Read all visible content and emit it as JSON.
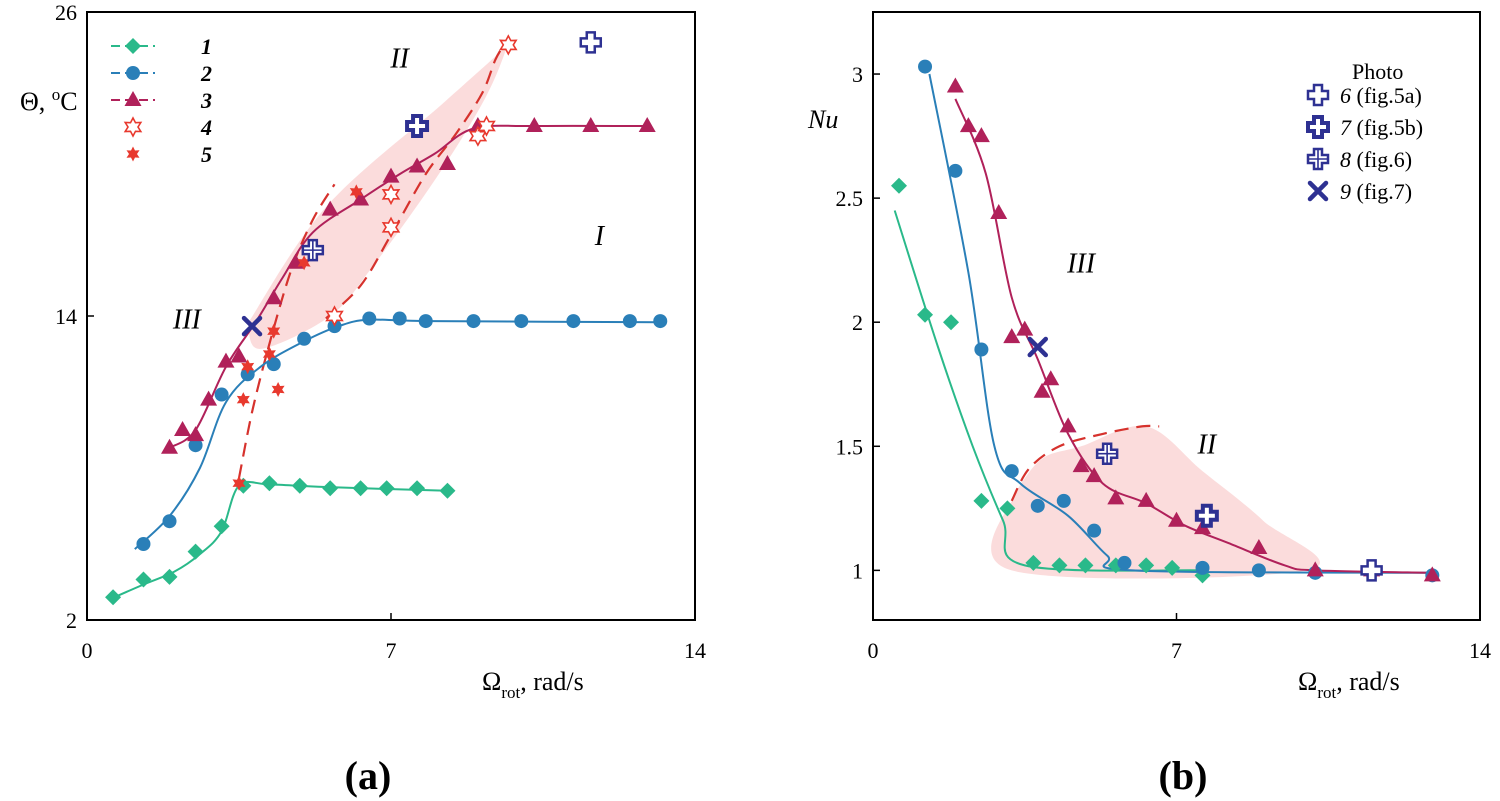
{
  "colors": {
    "s1": "#2ab98a",
    "s2": "#2a7fb8",
    "s3": "#b0215a",
    "s45": "#e8392e",
    "photo": "#2e3192",
    "shade": "#f9d0d0",
    "dash": "#d6322d"
  },
  "chart_data": [
    {
      "type": "scatter",
      "panel_label": "(a)",
      "xlabel": "Ω",
      "xlabel_sub": "rot",
      "xlabel_unit": ", rad/s",
      "ylabel": "Θ, ",
      "ylabel_sup": "o",
      "ylabel_unit": "C",
      "xlim": [
        0,
        14
      ],
      "ylim": [
        2,
        26
      ],
      "xticks": [
        "0",
        "7",
        "14"
      ],
      "xtick_values": [
        0,
        7,
        14
      ],
      "yticks": [
        "2",
        "14",
        "26"
      ],
      "ytick_values": [
        2,
        14,
        26
      ],
      "legend": [
        {
          "label": "1",
          "marker": "diamond",
          "color": "s1",
          "line": true
        },
        {
          "label": "2",
          "marker": "circle",
          "color": "s2",
          "line": true
        },
        {
          "label": "3",
          "marker": "triangle",
          "color": "s3",
          "line": true
        },
        {
          "label": "4",
          "marker": "star-open",
          "color": "s45",
          "line": false
        },
        {
          "label": "5",
          "marker": "star",
          "color": "s45",
          "line": false
        }
      ],
      "regions": [
        {
          "label": "I",
          "x": 11.8,
          "y": 16.8
        },
        {
          "label": "II",
          "x": 7.2,
          "y": 23.8
        },
        {
          "label": "III",
          "x": 2.3,
          "y": 13.5
        }
      ],
      "shaded_region": [
        [
          3.7,
          13.7
        ],
        [
          5.5,
          18.3
        ],
        [
          8.2,
          22.4
        ],
        [
          9.5,
          24.4
        ],
        [
          9.7,
          24.8
        ],
        [
          9.2,
          22.7
        ],
        [
          8.1,
          19.6
        ],
        [
          6.6,
          16.0
        ],
        [
          5.6,
          14.0
        ],
        [
          4.0,
          12.7
        ]
      ],
      "dashed_boundaries": [
        [
          [
            3.5,
            7.6
          ],
          [
            3.8,
            10.2
          ],
          [
            4.2,
            12.9
          ],
          [
            4.7,
            15.8
          ],
          [
            5.2,
            17.8
          ],
          [
            5.7,
            19.2
          ]
        ],
        [
          [
            5.5,
            13.9
          ],
          [
            6.3,
            15.2
          ],
          [
            7.0,
            17.2
          ],
          [
            7.8,
            19.6
          ],
          [
            8.5,
            21.2
          ],
          [
            9.1,
            22.8
          ],
          [
            9.4,
            24.1
          ],
          [
            9.6,
            24.7
          ]
        ]
      ],
      "series": [
        {
          "name": "1",
          "marker": "diamond",
          "color": "s1",
          "points": [
            [
              0.6,
              2.9
            ],
            [
              1.3,
              3.6
            ],
            [
              1.9,
              3.7
            ],
            [
              2.5,
              4.7
            ],
            [
              3.1,
              5.7
            ],
            [
              3.6,
              7.3
            ],
            [
              4.2,
              7.4
            ],
            [
              4.9,
              7.3
            ],
            [
              5.6,
              7.2
            ],
            [
              6.3,
              7.2
            ],
            [
              6.9,
              7.2
            ],
            [
              7.6,
              7.2
            ],
            [
              8.3,
              7.1
            ]
          ],
          "curve": [
            [
              0.5,
              2.8
            ],
            [
              1.3,
              3.4
            ],
            [
              2.0,
              3.9
            ],
            [
              2.6,
              4.6
            ],
            [
              3.1,
              5.5
            ],
            [
              3.5,
              7.3
            ],
            [
              4.2,
              7.35
            ],
            [
              5.5,
              7.25
            ],
            [
              8.3,
              7.1
            ]
          ]
        },
        {
          "name": "2",
          "marker": "circle",
          "color": "s2",
          "points": [
            [
              1.3,
              5.0
            ],
            [
              1.9,
              5.9
            ],
            [
              2.5,
              8.9
            ],
            [
              3.1,
              10.9
            ],
            [
              3.7,
              11.7
            ],
            [
              4.3,
              12.1
            ],
            [
              5.0,
              13.1
            ],
            [
              5.7,
              13.6
            ],
            [
              6.5,
              13.9
            ],
            [
              7.2,
              13.9
            ],
            [
              7.8,
              13.8
            ],
            [
              8.9,
              13.8
            ],
            [
              10.0,
              13.8
            ],
            [
              11.2,
              13.8
            ],
            [
              12.5,
              13.8
            ],
            [
              13.2,
              13.8
            ]
          ],
          "curve": [
            [
              1.1,
              4.8
            ],
            [
              1.9,
              6.1
            ],
            [
              2.6,
              8.0
            ],
            [
              3.2,
              10.6
            ],
            [
              4.0,
              12.0
            ],
            [
              5.0,
              13.0
            ],
            [
              5.8,
              13.6
            ],
            [
              6.5,
              13.85
            ],
            [
              8.0,
              13.8
            ],
            [
              13.2,
              13.75
            ]
          ]
        },
        {
          "name": "3",
          "marker": "triangle",
          "color": "s3",
          "points": [
            [
              1.9,
              8.8
            ],
            [
              2.2,
              9.5
            ],
            [
              2.5,
              9.3
            ],
            [
              2.8,
              10.7
            ],
            [
              3.2,
              12.2
            ],
            [
              3.5,
              12.4
            ],
            [
              4.3,
              14.7
            ],
            [
              4.8,
              16.1
            ],
            [
              5.6,
              18.2
            ],
            [
              6.3,
              18.6
            ],
            [
              7.0,
              19.5
            ],
            [
              7.6,
              19.9
            ],
            [
              8.3,
              20.0
            ],
            [
              9.0,
              21.5
            ],
            [
              10.3,
              21.5
            ],
            [
              11.6,
              21.5
            ],
            [
              12.9,
              21.5
            ]
          ],
          "curve": [
            [
              1.9,
              8.8
            ],
            [
              2.5,
              9.5
            ],
            [
              3.2,
              12.0
            ],
            [
              3.9,
              13.8
            ],
            [
              4.5,
              15.5
            ],
            [
              5.2,
              17.3
            ],
            [
              6.3,
              18.6
            ],
            [
              7.2,
              19.6
            ],
            [
              8.0,
              20.4
            ],
            [
              8.9,
              21.4
            ],
            [
              10.3,
              21.5
            ],
            [
              12.9,
              21.5
            ]
          ]
        },
        {
          "name": "4",
          "marker": "star-open",
          "color": "s45",
          "points": [
            [
              5.7,
              14.0
            ],
            [
              7.0,
              17.5
            ],
            [
              7.0,
              18.8
            ],
            [
              9.0,
              21.1
            ],
            [
              9.2,
              21.5
            ],
            [
              9.7,
              24.7
            ]
          ]
        },
        {
          "name": "5",
          "marker": "star",
          "color": "s45",
          "points": [
            [
              3.5,
              7.4
            ],
            [
              3.6,
              10.7
            ],
            [
              3.7,
              12.0
            ],
            [
              4.2,
              12.5
            ],
            [
              4.3,
              13.4
            ],
            [
              4.4,
              11.1
            ],
            [
              5.0,
              16.1
            ],
            [
              6.2,
              18.9
            ]
          ]
        },
        {
          "name": "6",
          "marker": "cross-open",
          "color": "photo",
          "points": [
            [
              11.6,
              24.8
            ]
          ]
        },
        {
          "name": "7",
          "marker": "cross-bold",
          "color": "photo",
          "points": [
            [
              7.6,
              21.5
            ]
          ]
        },
        {
          "name": "8",
          "marker": "cross-grid",
          "color": "photo",
          "points": [
            [
              5.2,
              16.6
            ]
          ]
        },
        {
          "name": "9",
          "marker": "x",
          "color": "photo",
          "points": [
            [
              3.8,
              13.6
            ]
          ]
        }
      ]
    },
    {
      "type": "scatter",
      "panel_label": "(b)",
      "xlabel": "Ω",
      "xlabel_sub": "rot",
      "xlabel_unit": ", rad/s",
      "ylabel": "Nu",
      "xlim": [
        0,
        14
      ],
      "ylim": [
        0.8,
        3.25
      ],
      "xticks": [
        "0",
        "7",
        "14"
      ],
      "xtick_values": [
        0,
        7,
        14
      ],
      "yticks": [
        "1",
        "1.5",
        "2",
        "2.5",
        "3"
      ],
      "ytick_values": [
        1,
        1.5,
        2,
        2.5,
        3
      ],
      "legend_title": "Photo",
      "legend": [
        {
          "label": "6",
          "note": "(fig.5a)",
          "marker": "cross-open",
          "color": "photo"
        },
        {
          "label": "7",
          "note": "(fig.5b)",
          "marker": "cross-bold",
          "color": "photo"
        },
        {
          "label": "8",
          "note": "(fig.6)",
          "marker": "cross-grid",
          "color": "photo"
        },
        {
          "label": "9",
          "note": "(fig.7)",
          "marker": "x",
          "color": "photo"
        }
      ],
      "regions": [
        {
          "label": "III",
          "x": 4.8,
          "y": 2.2
        },
        {
          "label": "II",
          "x": 7.7,
          "y": 1.47
        }
      ],
      "shaded_region": [
        [
          3.3,
          1.32
        ],
        [
          3.9,
          1.45
        ],
        [
          4.8,
          1.5
        ],
        [
          6.3,
          1.58
        ],
        [
          7.6,
          1.4
        ],
        [
          9.0,
          1.2
        ],
        [
          10.0,
          1.0
        ],
        [
          3.2,
          1.0
        ]
      ],
      "dashed_boundaries": [
        [
          [
            3.2,
            1.28
          ],
          [
            3.6,
            1.41
          ],
          [
            4.3,
            1.5
          ],
          [
            5.3,
            1.55
          ],
          [
            6.2,
            1.58
          ],
          [
            6.6,
            1.58
          ]
        ]
      ],
      "series": [
        {
          "name": "1",
          "marker": "diamond",
          "color": "s1",
          "points": [
            [
              0.6,
              2.55
            ],
            [
              1.2,
              2.03
            ],
            [
              1.8,
              2.0
            ],
            [
              2.5,
              1.28
            ],
            [
              3.1,
              1.25
            ],
            [
              3.7,
              1.03
            ],
            [
              4.3,
              1.02
            ],
            [
              4.9,
              1.02
            ],
            [
              5.6,
              1.02
            ],
            [
              6.3,
              1.02
            ],
            [
              6.9,
              1.01
            ],
            [
              7.6,
              0.98
            ]
          ],
          "curve": [
            [
              0.5,
              2.45
            ],
            [
              1.5,
              1.9
            ],
            [
              2.3,
              1.5
            ],
            [
              3.0,
              1.2
            ],
            [
              3.5,
              1.02
            ],
            [
              7.6,
              1.0
            ]
          ]
        },
        {
          "name": "2",
          "marker": "circle",
          "color": "s2",
          "points": [
            [
              1.2,
              3.03
            ],
            [
              1.9,
              2.61
            ],
            [
              2.5,
              1.89
            ],
            [
              3.2,
              1.4
            ],
            [
              3.8,
              1.26
            ],
            [
              4.4,
              1.28
            ],
            [
              5.1,
              1.16
            ],
            [
              5.8,
              1.03
            ],
            [
              7.6,
              1.01
            ],
            [
              8.9,
              1.0
            ],
            [
              10.2,
              0.99
            ],
            [
              11.5,
              1.0
            ],
            [
              12.9,
              0.98
            ]
          ],
          "curve": [
            [
              1.3,
              3.0
            ],
            [
              2.2,
              2.2
            ],
            [
              2.8,
              1.5
            ],
            [
              3.4,
              1.35
            ],
            [
              4.5,
              1.22
            ],
            [
              5.4,
              1.06
            ],
            [
              6.0,
              1.0
            ],
            [
              12.9,
              0.99
            ]
          ]
        },
        {
          "name": "3",
          "marker": "triangle",
          "color": "s3",
          "points": [
            [
              1.9,
              2.95
            ],
            [
              2.2,
              2.79
            ],
            [
              2.5,
              2.75
            ],
            [
              2.9,
              2.44
            ],
            [
              3.2,
              1.94
            ],
            [
              3.5,
              1.97
            ],
            [
              3.9,
              1.72
            ],
            [
              4.1,
              1.77
            ],
            [
              4.5,
              1.58
            ],
            [
              4.8,
              1.42
            ],
            [
              5.1,
              1.38
            ],
            [
              5.6,
              1.29
            ],
            [
              6.3,
              1.28
            ],
            [
              7.0,
              1.2
            ],
            [
              7.6,
              1.17
            ],
            [
              8.9,
              1.09
            ],
            [
              10.2,
              1.0
            ],
            [
              11.5,
              1.0
            ],
            [
              12.9,
              0.98
            ]
          ],
          "curve": [
            [
              1.9,
              2.9
            ],
            [
              2.6,
              2.6
            ],
            [
              3.2,
              2.1
            ],
            [
              3.8,
              1.85
            ],
            [
              4.5,
              1.55
            ],
            [
              5.3,
              1.35
            ],
            [
              6.3,
              1.27
            ],
            [
              7.2,
              1.18
            ],
            [
              8.2,
              1.11
            ],
            [
              9.5,
              1.02
            ],
            [
              10.2,
              1.0
            ],
            [
              12.9,
              0.99
            ]
          ]
        },
        {
          "name": "6",
          "marker": "cross-open",
          "color": "photo",
          "points": [
            [
              11.5,
              1.0
            ]
          ]
        },
        {
          "name": "7",
          "marker": "cross-bold",
          "color": "photo",
          "points": [
            [
              7.7,
              1.22
            ]
          ]
        },
        {
          "name": "8",
          "marker": "cross-grid",
          "color": "photo",
          "points": [
            [
              5.4,
              1.47
            ]
          ]
        },
        {
          "name": "9",
          "marker": "x",
          "color": "photo",
          "points": [
            [
              3.8,
              1.9
            ]
          ]
        }
      ]
    }
  ]
}
